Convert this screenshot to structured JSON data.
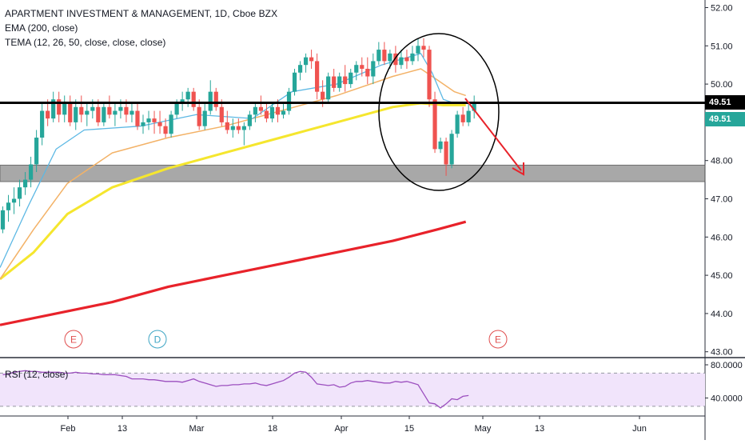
{
  "legend": {
    "title": "APARTMENT INVESTMENT & MANAGEMENT, 1D, Cboe BZX",
    "ema": "EMA (200, close)",
    "tema": "TEMA (12, 26, 50, close, close, close)"
  },
  "rsi_label": "RSI (12, close)",
  "price_tags": {
    "resistance": "49.51",
    "last": "49.51"
  },
  "events": [
    {
      "label": "E",
      "color": "#e04f4f",
      "x": "Jan 23"
    },
    {
      "label": "D",
      "color": "#3da5c4",
      "x": "Feb 21"
    },
    {
      "label": "E",
      "color": "#e04f4f",
      "x": "May 2"
    }
  ],
  "colors": {
    "up": "#26a69a",
    "down": "#ef5350",
    "ema200": "#e8222a",
    "tema_fast": "#5cb8e4",
    "tema_mid": "#f3b267",
    "tema_slow": "#f5e62e",
    "rsi": "#9c4fbf",
    "rsi_band": "#f1e4fb",
    "support_zone": "#9a9a9a",
    "annotation": "#000000",
    "arrow": "#e8222a"
  },
  "chart_data": [
    {
      "type": "candlestick",
      "title": "APARTMENT INVESTMENT & MANAGEMENT, 1D, Cboe BZX",
      "y_axis_ticks": [
        "52.00",
        "51.00",
        "50.00",
        "49.00",
        "48.00",
        "47.00",
        "46.00",
        "45.00",
        "44.00",
        "43.00"
      ],
      "ylim": [
        43.0,
        52.2
      ],
      "x_axis_ticks": [
        "Feb",
        "13",
        "Mar",
        "18",
        "Apr",
        "15",
        "May",
        "13",
        "Jun"
      ],
      "grid": false,
      "candles": [
        {
          "d": "Jan 2",
          "o": 46.2,
          "h": 46.8,
          "l": 46.1,
          "c": 46.7
        },
        {
          "d": "Jan 3",
          "o": 46.7,
          "h": 47.1,
          "l": 46.4,
          "c": 46.9
        },
        {
          "d": "Jan 4",
          "o": 46.9,
          "h": 47.3,
          "l": 46.6,
          "c": 47.0
        },
        {
          "d": "Jan 7",
          "o": 47.0,
          "h": 47.5,
          "l": 46.8,
          "c": 47.3
        },
        {
          "d": "Jan 8",
          "o": 47.3,
          "h": 47.7,
          "l": 47.1,
          "c": 47.5
        },
        {
          "d": "Jan 9",
          "o": 47.5,
          "h": 48.1,
          "l": 47.3,
          "c": 47.9
        },
        {
          "d": "Jan 10",
          "o": 47.9,
          "h": 48.8,
          "l": 47.7,
          "c": 48.6
        },
        {
          "d": "Jan 11",
          "o": 48.6,
          "h": 49.5,
          "l": 48.4,
          "c": 49.3
        },
        {
          "d": "Jan 14",
          "o": 49.3,
          "h": 49.6,
          "l": 48.9,
          "c": 49.1
        },
        {
          "d": "Jan 15",
          "o": 49.1,
          "h": 49.8,
          "l": 49.0,
          "c": 49.6
        },
        {
          "d": "Jan 16",
          "o": 49.6,
          "h": 49.8,
          "l": 49.0,
          "c": 49.2
        },
        {
          "d": "Jan 17",
          "o": 49.2,
          "h": 49.7,
          "l": 49.0,
          "c": 49.5
        },
        {
          "d": "Jan 18",
          "o": 49.5,
          "h": 49.7,
          "l": 48.9,
          "c": 49.0
        },
        {
          "d": "Jan 22",
          "o": 49.0,
          "h": 49.6,
          "l": 48.8,
          "c": 49.4
        },
        {
          "d": "Jan 23",
          "o": 49.4,
          "h": 49.7,
          "l": 49.0,
          "c": 49.2
        },
        {
          "d": "Jan 24",
          "o": 49.2,
          "h": 49.5,
          "l": 48.9,
          "c": 49.3
        },
        {
          "d": "Jan 25",
          "o": 49.3,
          "h": 49.6,
          "l": 49.1,
          "c": 49.4
        },
        {
          "d": "Jan 28",
          "o": 49.4,
          "h": 49.6,
          "l": 48.9,
          "c": 49.0
        },
        {
          "d": "Jan 29",
          "o": 49.0,
          "h": 49.5,
          "l": 48.9,
          "c": 49.4
        },
        {
          "d": "Jan 30",
          "o": 49.4,
          "h": 49.7,
          "l": 49.1,
          "c": 49.2
        },
        {
          "d": "Jan 31",
          "o": 49.2,
          "h": 49.5,
          "l": 48.9,
          "c": 49.3
        },
        {
          "d": "Feb 1",
          "o": 49.3,
          "h": 49.6,
          "l": 49.1,
          "c": 49.4
        },
        {
          "d": "Feb 4",
          "o": 49.4,
          "h": 49.6,
          "l": 49.0,
          "c": 49.2
        },
        {
          "d": "Feb 5",
          "o": 49.2,
          "h": 49.5,
          "l": 49.0,
          "c": 49.3
        },
        {
          "d": "Feb 6",
          "o": 49.3,
          "h": 49.5,
          "l": 48.8,
          "c": 48.9
        },
        {
          "d": "Feb 7",
          "o": 48.9,
          "h": 49.2,
          "l": 48.7,
          "c": 49.0
        },
        {
          "d": "Feb 8",
          "o": 49.0,
          "h": 49.3,
          "l": 48.8,
          "c": 49.1
        },
        {
          "d": "Feb 11",
          "o": 49.1,
          "h": 49.3,
          "l": 48.7,
          "c": 49.0
        },
        {
          "d": "Feb 12",
          "o": 49.0,
          "h": 49.3,
          "l": 48.7,
          "c": 48.9
        },
        {
          "d": "Feb 13",
          "o": 48.9,
          "h": 49.1,
          "l": 48.6,
          "c": 48.7
        },
        {
          "d": "Feb 14",
          "o": 48.7,
          "h": 49.3,
          "l": 48.6,
          "c": 49.2
        },
        {
          "d": "Feb 15",
          "o": 49.2,
          "h": 49.6,
          "l": 49.1,
          "c": 49.5
        },
        {
          "d": "Feb 19",
          "o": 49.5,
          "h": 49.8,
          "l": 49.3,
          "c": 49.6
        },
        {
          "d": "Feb 20",
          "o": 49.6,
          "h": 49.9,
          "l": 49.4,
          "c": 49.8
        },
        {
          "d": "Feb 21",
          "o": 49.8,
          "h": 49.9,
          "l": 49.3,
          "c": 49.4
        },
        {
          "d": "Feb 22",
          "o": 49.4,
          "h": 49.6,
          "l": 48.8,
          "c": 48.9
        },
        {
          "d": "Feb 25",
          "o": 48.9,
          "h": 49.5,
          "l": 48.8,
          "c": 49.3
        },
        {
          "d": "Feb 26",
          "o": 49.3,
          "h": 50.1,
          "l": 49.2,
          "c": 49.8
        },
        {
          "d": "Feb 27",
          "o": 49.8,
          "h": 49.9,
          "l": 49.3,
          "c": 49.4
        },
        {
          "d": "Feb 28",
          "o": 49.4,
          "h": 49.6,
          "l": 48.9,
          "c": 49.0
        },
        {
          "d": "Mar 1",
          "o": 49.0,
          "h": 49.3,
          "l": 48.7,
          "c": 48.8
        },
        {
          "d": "Mar 4",
          "o": 48.8,
          "h": 49.1,
          "l": 48.6,
          "c": 48.9
        },
        {
          "d": "Mar 5",
          "o": 48.9,
          "h": 49.1,
          "l": 48.7,
          "c": 48.8
        },
        {
          "d": "Mar 6",
          "o": 48.8,
          "h": 49.0,
          "l": 48.4,
          "c": 48.9
        },
        {
          "d": "Mar 7",
          "o": 48.9,
          "h": 49.3,
          "l": 48.8,
          "c": 49.2
        },
        {
          "d": "Mar 8",
          "o": 49.2,
          "h": 49.5,
          "l": 49.0,
          "c": 49.4
        },
        {
          "d": "Mar 11",
          "o": 49.4,
          "h": 49.7,
          "l": 49.2,
          "c": 49.3
        },
        {
          "d": "Mar 12",
          "o": 49.3,
          "h": 49.5,
          "l": 49.0,
          "c": 49.1
        },
        {
          "d": "Mar 13",
          "o": 49.1,
          "h": 49.5,
          "l": 49.0,
          "c": 49.4
        },
        {
          "d": "Mar 14",
          "o": 49.4,
          "h": 49.6,
          "l": 49.0,
          "c": 49.2
        },
        {
          "d": "Mar 15",
          "o": 49.2,
          "h": 49.5,
          "l": 49.1,
          "c": 49.3
        },
        {
          "d": "Mar 18",
          "o": 49.3,
          "h": 49.9,
          "l": 49.2,
          "c": 49.8
        },
        {
          "d": "Mar 19",
          "o": 49.8,
          "h": 50.4,
          "l": 49.7,
          "c": 50.3
        },
        {
          "d": "Mar 20",
          "o": 50.3,
          "h": 50.6,
          "l": 50.1,
          "c": 50.5
        },
        {
          "d": "Mar 21",
          "o": 50.5,
          "h": 50.8,
          "l": 50.3,
          "c": 50.7
        },
        {
          "d": "Mar 22",
          "o": 50.7,
          "h": 50.9,
          "l": 50.4,
          "c": 50.6
        },
        {
          "d": "Mar 25",
          "o": 50.6,
          "h": 50.8,
          "l": 49.6,
          "c": 49.8
        },
        {
          "d": "Mar 26",
          "o": 49.8,
          "h": 50.1,
          "l": 49.4,
          "c": 49.6
        },
        {
          "d": "Mar 27",
          "o": 49.6,
          "h": 50.3,
          "l": 49.5,
          "c": 50.2
        },
        {
          "d": "Mar 28",
          "o": 50.2,
          "h": 50.4,
          "l": 49.8,
          "c": 49.9
        },
        {
          "d": "Mar 29",
          "o": 49.9,
          "h": 50.3,
          "l": 49.8,
          "c": 50.2
        },
        {
          "d": "Apr 1",
          "o": 50.2,
          "h": 50.5,
          "l": 49.8,
          "c": 50.0
        },
        {
          "d": "Apr 2",
          "o": 50.0,
          "h": 50.4,
          "l": 49.9,
          "c": 50.3
        },
        {
          "d": "Apr 3",
          "o": 50.3,
          "h": 50.6,
          "l": 50.1,
          "c": 50.5
        },
        {
          "d": "Apr 4",
          "o": 50.5,
          "h": 50.7,
          "l": 50.2,
          "c": 50.4
        },
        {
          "d": "Apr 5",
          "o": 50.4,
          "h": 50.7,
          "l": 50.0,
          "c": 50.2
        },
        {
          "d": "Apr 8",
          "o": 50.2,
          "h": 50.8,
          "l": 50.0,
          "c": 50.6
        },
        {
          "d": "Apr 9",
          "o": 50.6,
          "h": 51.1,
          "l": 50.5,
          "c": 50.9
        },
        {
          "d": "Apr 10",
          "o": 50.9,
          "h": 51.1,
          "l": 50.5,
          "c": 50.6
        },
        {
          "d": "Apr 11",
          "o": 50.6,
          "h": 50.9,
          "l": 50.4,
          "c": 50.8
        },
        {
          "d": "Apr 12",
          "o": 50.8,
          "h": 51.0,
          "l": 50.3,
          "c": 50.5
        },
        {
          "d": "Apr 15",
          "o": 50.5,
          "h": 50.9,
          "l": 50.4,
          "c": 50.7
        },
        {
          "d": "Apr 16",
          "o": 50.7,
          "h": 50.9,
          "l": 50.4,
          "c": 50.6
        },
        {
          "d": "Apr 17",
          "o": 50.6,
          "h": 51.0,
          "l": 50.5,
          "c": 50.8
        },
        {
          "d": "Apr 18",
          "o": 50.8,
          "h": 51.2,
          "l": 50.6,
          "c": 51.0
        },
        {
          "d": "Apr 22",
          "o": 51.0,
          "h": 51.2,
          "l": 50.7,
          "c": 50.9
        },
        {
          "d": "Apr 23",
          "o": 50.9,
          "h": 51.0,
          "l": 49.4,
          "c": 49.6
        },
        {
          "d": "Apr 24",
          "o": 49.6,
          "h": 49.8,
          "l": 48.2,
          "c": 48.3
        },
        {
          "d": "Apr 25",
          "o": 48.3,
          "h": 48.6,
          "l": 48.2,
          "c": 48.5
        },
        {
          "d": "Apr 26",
          "o": 48.5,
          "h": 48.6,
          "l": 47.6,
          "c": 47.9
        },
        {
          "d": "Apr 29",
          "o": 47.9,
          "h": 48.8,
          "l": 47.8,
          "c": 48.7
        },
        {
          "d": "Apr 30",
          "o": 48.7,
          "h": 49.3,
          "l": 48.6,
          "c": 49.2
        },
        {
          "d": "May 1",
          "o": 49.2,
          "h": 49.4,
          "l": 48.9,
          "c": 49.0
        },
        {
          "d": "May 2",
          "o": 49.0,
          "h": 49.5,
          "l": 48.9,
          "c": 49.3
        },
        {
          "d": "May 3",
          "o": 49.3,
          "h": 49.7,
          "l": 49.1,
          "c": 49.5
        }
      ],
      "ema200": [
        [
          0,
          43.7
        ],
        [
          10,
          44.0
        ],
        [
          20,
          44.3
        ],
        [
          30,
          44.7
        ],
        [
          40,
          45.0
        ],
        [
          50,
          45.3
        ],
        [
          60,
          45.6
        ],
        [
          70,
          45.9
        ],
        [
          78,
          46.2
        ],
        [
          83,
          46.4
        ]
      ],
      "tema_fast": [
        [
          0,
          45.2
        ],
        [
          5,
          46.8
        ],
        [
          10,
          48.3
        ],
        [
          15,
          48.8
        ],
        [
          25,
          48.9
        ],
        [
          35,
          49.2
        ],
        [
          45,
          49.1
        ],
        [
          52,
          49.8
        ],
        [
          60,
          50.0
        ],
        [
          68,
          50.5
        ],
        [
          75,
          50.8
        ],
        [
          77,
          50.3
        ],
        [
          79,
          49.6
        ],
        [
          81,
          49.5
        ],
        [
          83,
          49.5
        ]
      ],
      "tema_mid": [
        [
          0,
          44.9
        ],
        [
          6,
          46.2
        ],
        [
          12,
          47.4
        ],
        [
          20,
          48.2
        ],
        [
          30,
          48.6
        ],
        [
          40,
          48.9
        ],
        [
          50,
          49.3
        ],
        [
          60,
          49.7
        ],
        [
          70,
          50.2
        ],
        [
          75,
          50.4
        ],
        [
          78,
          50.1
        ],
        [
          81,
          49.8
        ],
        [
          83,
          49.7
        ]
      ],
      "tema_slow": [
        [
          0,
          44.9
        ],
        [
          6,
          45.6
        ],
        [
          12,
          46.6
        ],
        [
          20,
          47.3
        ],
        [
          30,
          47.8
        ],
        [
          40,
          48.2
        ],
        [
          50,
          48.6
        ],
        [
          60,
          49.0
        ],
        [
          70,
          49.4
        ],
        [
          75,
          49.5
        ],
        [
          79,
          49.45
        ],
        [
          83,
          49.45
        ]
      ],
      "resistance_line": 49.51,
      "support_zone": [
        47.45,
        47.88
      ],
      "last_price": "49.51"
    },
    {
      "type": "line",
      "title": "RSI (12, close)",
      "y_axis_ticks": [
        "80.0000",
        "40.0000"
      ],
      "ylim": [
        20,
        90
      ],
      "band": [
        30,
        70
      ],
      "values": [
        68,
        69,
        71,
        72,
        73,
        72,
        72,
        71,
        71,
        71,
        71,
        70,
        70,
        71,
        70,
        70,
        69,
        69,
        68,
        68,
        68,
        67,
        66,
        63,
        63,
        63,
        62,
        62,
        61,
        60,
        60,
        60,
        59,
        61,
        63,
        60,
        58,
        56,
        54,
        55,
        55,
        56,
        56,
        57,
        57,
        58,
        56,
        55,
        57,
        59,
        61,
        65,
        70,
        72,
        71,
        65,
        57,
        56,
        55,
        56,
        53,
        54,
        58,
        60,
        60,
        61,
        60,
        59,
        58,
        58,
        60,
        59,
        60,
        58,
        56,
        45,
        34,
        33,
        28,
        33,
        39,
        38,
        42,
        43
      ]
    }
  ]
}
